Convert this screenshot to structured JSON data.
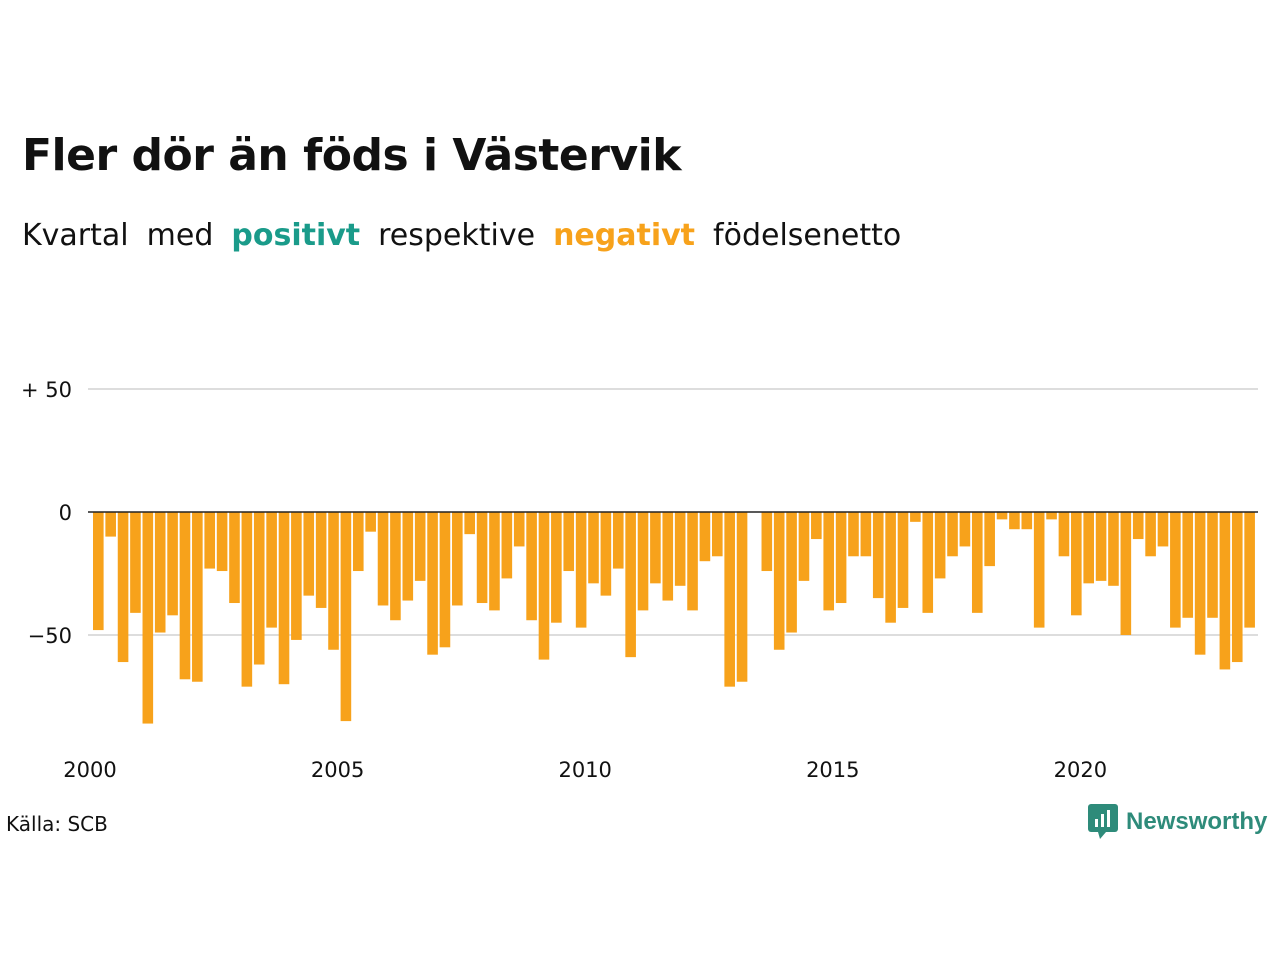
{
  "title": "Fler dör än föds i Västervik",
  "subtitle": {
    "part1": "Kvartal",
    "part2": "med",
    "positive": "positivt",
    "part3": "respektive",
    "negative": "negativt",
    "part4": "födelsenetto"
  },
  "source": "Källa: SCB",
  "logo": {
    "text": "Newsworthy",
    "icon": "newsworthy-logo-icon"
  },
  "colors": {
    "positive": "#1a9b8a",
    "negative": "#f7a21b",
    "grid": "#dddddd",
    "axis": "#222222"
  },
  "chart_data": {
    "type": "bar",
    "ylim": [
      -95,
      60
    ],
    "y_ticks": [
      50,
      0,
      -50
    ],
    "y_tick_labels": [
      "+ 50",
      "0",
      "−50"
    ],
    "x_tick_labels": [
      "2000",
      "2005",
      "2010",
      "2015",
      "2020"
    ],
    "x_tick_years": [
      2000,
      2005,
      2010,
      2015,
      2020
    ],
    "first_quarter": "2000Q1",
    "grid": true,
    "values": [
      -48,
      -10,
      -61,
      -41,
      -86,
      -49,
      -42,
      -68,
      -69,
      -23,
      -24,
      -37,
      -71,
      -62,
      -47,
      -70,
      -52,
      -34,
      -39,
      -56,
      -85,
      -24,
      -8,
      -38,
      -44,
      -36,
      -28,
      -58,
      -55,
      -38,
      -9,
      -37,
      -40,
      -27,
      -14,
      -44,
      -60,
      -45,
      -24,
      -47,
      -29,
      -34,
      -23,
      -59,
      -40,
      -29,
      -36,
      -30,
      -40,
      -20,
      -18,
      -71,
      -69,
      0,
      -24,
      -56,
      -49,
      -28,
      -11,
      -40,
      -37,
      -18,
      -18,
      -35,
      -45,
      -39,
      -4,
      -41,
      -27,
      -18,
      -14,
      -41,
      -22,
      -3,
      -7,
      -7,
      -47,
      -3,
      -18,
      -42,
      -29,
      -28,
      -30,
      -50,
      -11,
      -18,
      -14,
      -47,
      -43,
      -58,
      -43,
      -64,
      -61,
      -47
    ]
  }
}
